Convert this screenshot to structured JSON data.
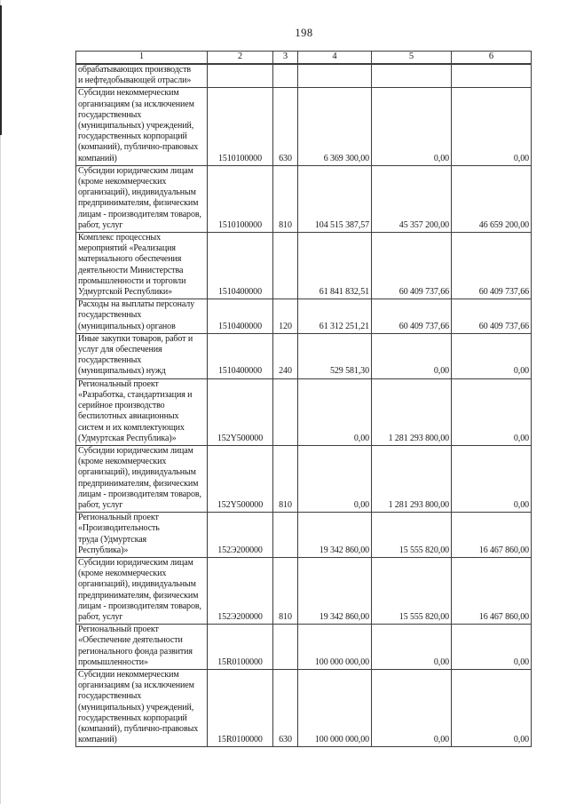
{
  "page": {
    "number": "198"
  },
  "table": {
    "column_headers": [
      "1",
      "2",
      "3",
      "4",
      "5",
      "6"
    ],
    "rows": [
      {
        "name": "обрабатывающих производств\nи нефтедобывающей отрасли»",
        "code": "",
        "expense_type": "",
        "col4": "",
        "col5": "",
        "col6": "",
        "bold": true
      },
      {
        "name": "Субсидии некоммерческим\nорганизациям (за исключением\nгосударственных\n(муниципальных) учреждений,\nгосударственных корпораций\n(компаний), публично-правовых\nкомпаний)",
        "code": "1510100000",
        "expense_type": "630",
        "col4": "6 369 300,00",
        "col5": "0,00",
        "col6": "0,00",
        "bold": false
      },
      {
        "name": "Субсидии юридическим лицам\n(кроме некоммерческих\nорганизаций), индивидуальным\nпредпринимателям, физическим\nлицам - производителям товаров,\nработ, услуг",
        "code": "1510100000",
        "expense_type": "810",
        "col4": "104 515 387,57",
        "col5": "45 357 200,00",
        "col6": "46 659 200,00",
        "bold": false
      },
      {
        "name": "Комплекс процессных\nмероприятий «Реализация\nматериального обеспечения\nдеятельности Министерства\nпромышленности и торговли\nУдмуртской Республики»",
        "code": "1510400000",
        "expense_type": "",
        "col4": "61 841 832,51",
        "col5": "60 409 737,66",
        "col6": "60 409 737,66",
        "bold": true
      },
      {
        "name": "Расходы на выплаты персоналу\nгосударственных\n(муниципальных) органов",
        "code": "1510400000",
        "expense_type": "120",
        "col4": "61 312 251,21",
        "col5": "60 409 737,66",
        "col6": "60 409 737,66",
        "bold": false
      },
      {
        "name": "Иные закупки товаров, работ и\nуслуг для обеспечения\nгосударственных\n(муниципальных) нужд",
        "code": "1510400000",
        "expense_type": "240",
        "col4": "529 581,30",
        "col5": "0,00",
        "col6": "0,00",
        "bold": false
      },
      {
        "name": "Региональный проект\n«Разработка, стандартизация и\nсерийное производство\nбеспилотных авиационных\nсистем и их комплектующих\n(Удмуртская Республика)»",
        "code": "152Y500000",
        "expense_type": "",
        "col4": "0,00",
        "col5": "1 281 293 800,00",
        "col6": "0,00",
        "bold": true
      },
      {
        "name": "Субсидии юридическим лицам\n(кроме некоммерческих\nорганизаций), индивидуальным\nпредпринимателям, физическим\nлицам - производителям товаров,\nработ, услуг",
        "code": "152Y500000",
        "expense_type": "810",
        "col4": "0,00",
        "col5": "1 281 293 800,00",
        "col6": "0,00",
        "bold": false
      },
      {
        "name": "Региональный проект\n«Производительность\nтруда (Удмуртская\nРеспублика)»",
        "code": "152Э200000",
        "expense_type": "",
        "col4": "19 342 860,00",
        "col5": "15 555 820,00",
        "col6": "16 467 860,00",
        "bold": true
      },
      {
        "name": "Субсидии юридическим лицам\n(кроме некоммерческих\nорганизаций), индивидуальным\nпредпринимателям, физическим\nлицам - производителям товаров,\nработ, услуг",
        "code": "152Э200000",
        "expense_type": "810",
        "col4": "19 342 860,00",
        "col5": "15 555 820,00",
        "col6": "16 467 860,00",
        "bold": false
      },
      {
        "name": "Региональный проект\n«Обеспечение деятельности\nрегионального фонда развития\nпромышленности»",
        "code": "15R0100000",
        "expense_type": "",
        "col4": "100 000 000,00",
        "col5": "0,00",
        "col6": "0,00",
        "bold": true
      },
      {
        "name": "Субсидии некоммерческим\nорганизациям (за исключением\nгосударственных\n(муниципальных) учреждений,\nгосударственных корпораций\n(компаний), публично-правовых\nкомпаний)",
        "code": "15R0100000",
        "expense_type": "630",
        "col4": "100 000 000,00",
        "col5": "0,00",
        "col6": "0,00",
        "bold": false
      }
    ]
  }
}
